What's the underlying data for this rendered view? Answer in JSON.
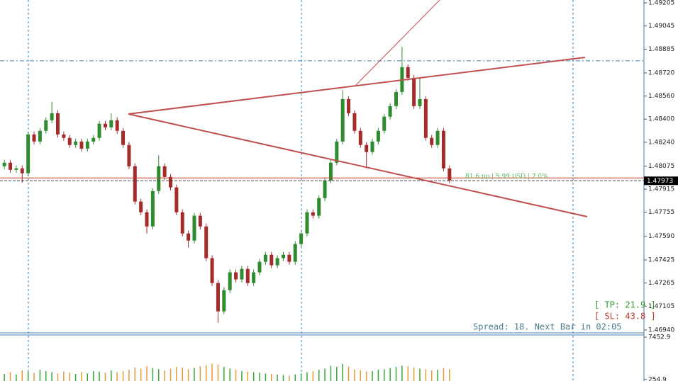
{
  "chart_data": {
    "type": "candlestick",
    "up_color": "#2e8b2e",
    "down_color": "#a52a2a",
    "volume_up_color": "#3aa63a",
    "volume_down_color": "#e69a3a",
    "open": [
      1.48074,
      1.48098,
      1.48049,
      1.48059,
      1.48025,
      1.48294,
      1.48245,
      1.48319,
      1.48392,
      1.48441,
      1.48294,
      1.4827,
      1.48221,
      1.48245,
      1.48196,
      1.48245,
      1.4827,
      1.48368,
      1.48343,
      1.48392,
      1.48319,
      1.48221,
      1.48074,
      1.47829,
      1.47755,
      1.47657,
      1.47902,
      1.48074,
      1.48,
      1.47927,
      1.47755,
      1.47608,
      1.47559,
      1.47731,
      1.47657,
      1.47437,
      1.47265,
      1.47069,
      1.47216,
      1.47339,
      1.4729,
      1.47363,
      1.47265,
      1.47339,
      1.47412,
      1.47461,
      1.47388,
      1.47437,
      1.47461,
      1.47412,
      1.47535,
      1.47608,
      1.47755,
      1.47731,
      1.47853,
      1.47976,
      1.48098,
      1.48245,
      1.48539,
      1.48441,
      1.48319,
      1.48221,
      1.48172,
      1.48245,
      1.48319,
      1.48417,
      1.4849,
      1.48588,
      1.4876,
      1.48686,
      1.4849,
      1.48539,
      1.4827,
      1.48221,
      1.48319,
      1.48059
    ],
    "high": [
      1.48118,
      1.48118,
      1.48079,
      1.48079,
      1.48314,
      1.48314,
      1.48339,
      1.48412,
      1.4852,
      1.48461,
      1.48314,
      1.4829,
      1.48265,
      1.48265,
      1.48265,
      1.4829,
      1.48388,
      1.48388,
      1.4844,
      1.48412,
      1.48339,
      1.48241,
      1.48094,
      1.47849,
      1.47775,
      1.47922,
      1.4815,
      1.48094,
      1.4802,
      1.47947,
      1.47775,
      1.47628,
      1.47751,
      1.47751,
      1.47677,
      1.47457,
      1.47285,
      1.47236,
      1.47359,
      1.47359,
      1.47383,
      1.47383,
      1.47359,
      1.47432,
      1.47481,
      1.47481,
      1.47457,
      1.47481,
      1.47481,
      1.47555,
      1.47628,
      1.47775,
      1.47775,
      1.47873,
      1.47996,
      1.48118,
      1.48265,
      1.486,
      1.48559,
      1.48461,
      1.48339,
      1.48241,
      1.48265,
      1.48339,
      1.48437,
      1.4851,
      1.48608,
      1.489,
      1.4878,
      1.48706,
      1.4869,
      1.48559,
      1.4829,
      1.48339,
      1.48339,
      1.48079
    ],
    "low": [
      1.48054,
      1.48029,
      1.48029,
      1.4796,
      1.48005,
      1.48225,
      1.48225,
      1.48299,
      1.48372,
      1.48274,
      1.4825,
      1.48201,
      1.48201,
      1.48176,
      1.48176,
      1.48225,
      1.4825,
      1.48323,
      1.48323,
      1.48299,
      1.48201,
      1.48054,
      1.47809,
      1.47735,
      1.47608,
      1.47637,
      1.47882,
      1.4798,
      1.47907,
      1.47735,
      1.47588,
      1.4751,
      1.47539,
      1.47637,
      1.47417,
      1.47245,
      1.4699,
      1.47049,
      1.47196,
      1.4727,
      1.4727,
      1.47245,
      1.47245,
      1.47319,
      1.47392,
      1.47368,
      1.47368,
      1.47417,
      1.47392,
      1.47392,
      1.47515,
      1.47588,
      1.47711,
      1.47711,
      1.47833,
      1.47956,
      1.48078,
      1.48225,
      1.48421,
      1.48299,
      1.48201,
      1.4806,
      1.48152,
      1.48225,
      1.48299,
      1.48397,
      1.4847,
      1.48568,
      1.48666,
      1.4847,
      1.4847,
      1.4825,
      1.48201,
      1.48201,
      1.48039,
      1.47956
    ],
    "close": [
      1.48098,
      1.48049,
      1.48059,
      1.48025,
      1.48294,
      1.48245,
      1.48319,
      1.48392,
      1.48441,
      1.48294,
      1.4827,
      1.48221,
      1.48245,
      1.48196,
      1.48245,
      1.4827,
      1.48368,
      1.48343,
      1.48392,
      1.48319,
      1.48221,
      1.48074,
      1.47829,
      1.47755,
      1.47657,
      1.47902,
      1.48074,
      1.48,
      1.47927,
      1.47755,
      1.47608,
      1.47559,
      1.47731,
      1.47657,
      1.47437,
      1.47265,
      1.47069,
      1.47216,
      1.47339,
      1.4729,
      1.47363,
      1.47265,
      1.47339,
      1.47412,
      1.47461,
      1.47388,
      1.47437,
      1.47461,
      1.47412,
      1.47535,
      1.47608,
      1.47755,
      1.47731,
      1.47853,
      1.47976,
      1.48098,
      1.48245,
      1.48539,
      1.48441,
      1.48319,
      1.48221,
      1.48172,
      1.48245,
      1.48319,
      1.48417,
      1.4849,
      1.48588,
      1.4876,
      1.48686,
      1.4849,
      1.48539,
      1.4827,
      1.48221,
      1.48319,
      1.48059,
      1.47976
    ],
    "volume": [
      1200,
      1500,
      1100,
      1800,
      1600,
      1400,
      1900,
      1700,
      1500,
      1300,
      1600,
      1400,
      1200,
      1500,
      1300,
      1700,
      1600,
      1400,
      1800,
      1500,
      1700,
      1900,
      2300,
      2100,
      2500,
      2200,
      2000,
      1800,
      2100,
      2400,
      2300,
      2000,
      2200,
      2500,
      2700,
      2900,
      2800,
      2400,
      2100,
      1900,
      1700,
      1600,
      1500,
      1400,
      1300,
      1200,
      1100,
      1000,
      900,
      1100,
      1300,
      1500,
      1700,
      1900,
      2100,
      2600,
      2400,
      2900,
      2500,
      2000,
      1800,
      1600,
      1700,
      1900,
      2000,
      2200,
      2400,
      2600,
      2500,
      2300,
      2100,
      2000,
      1800,
      1900,
      2200,
      2000
    ],
    "ylim": [
      1.4692,
      1.49225
    ],
    "yticks": [
      1.49205,
      1.49045,
      1.48885,
      {
        "value": 1.4872,
        "label": "1.48720"
      },
      {
        "value": 1.4856,
        "label": "1.48560"
      },
      {
        "value": 1.484,
        "label": "1.48400"
      },
      {
        "value": 1.4824,
        "label": "1.48240"
      },
      1.48075,
      1.47915,
      1.47755,
      {
        "value": 1.4759,
        "label": "1.47590"
      },
      1.47425,
      1.47265,
      1.47105,
      {
        "value": 1.4694,
        "label": "1.46940"
      }
    ],
    "volume_ylim": [
      0,
      7700
    ],
    "volume_yticks": [
      7452.9,
      254.9
    ],
    "current_price": 1.47973,
    "horizontal_line": 1.48804,
    "annotations": {
      "stats": "81.6 pp | 5.99 USD | 7.0%",
      "tp": "[ TP: 21.9 ]",
      "sl": "[ SL: 43.8 ]",
      "spread": "Spread: 18. Next Bar in 02:05"
    }
  }
}
